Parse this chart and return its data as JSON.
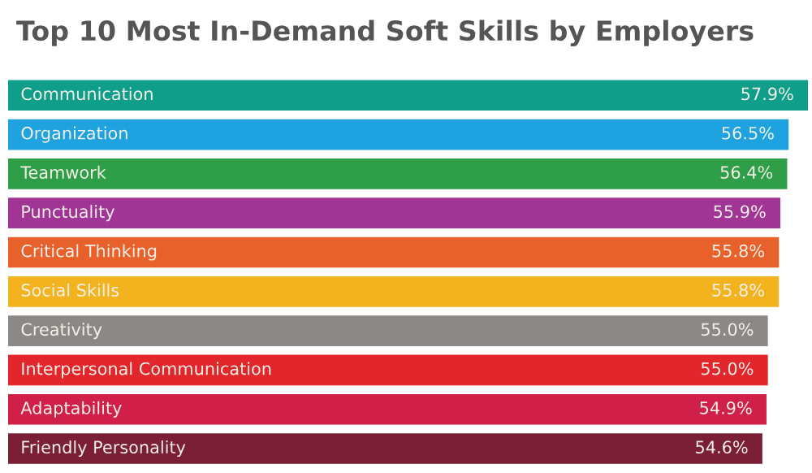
{
  "chart_data": {
    "type": "bar",
    "orientation": "horizontal",
    "title": "Top 10 Most In-Demand Soft Skills by Employers",
    "categories": [
      "Communication",
      "Organization",
      "Teamwork",
      "Punctuality",
      "Critical Thinking",
      "Social Skills",
      "Creativity",
      "Interpersonal Communication",
      "Adaptability",
      "Friendly Personality"
    ],
    "values": [
      57.9,
      56.5,
      56.4,
      55.9,
      55.8,
      55.8,
      55.0,
      55.0,
      54.9,
      54.6
    ],
    "colors": [
      "#0e9e8a",
      "#1ea3e0",
      "#2e9e48",
      "#a03596",
      "#e8602a",
      "#f2b31e",
      "#8c8886",
      "#e3262b",
      "#d01f48",
      "#7a1f35"
    ],
    "value_labels": [
      "57.9%",
      "56.5%",
      "56.4%",
      "55.9%",
      "55.8%",
      "55.8%",
      "55.0%",
      "55.0%",
      "54.9%",
      "54.6%"
    ],
    "data_labels": false
  }
}
